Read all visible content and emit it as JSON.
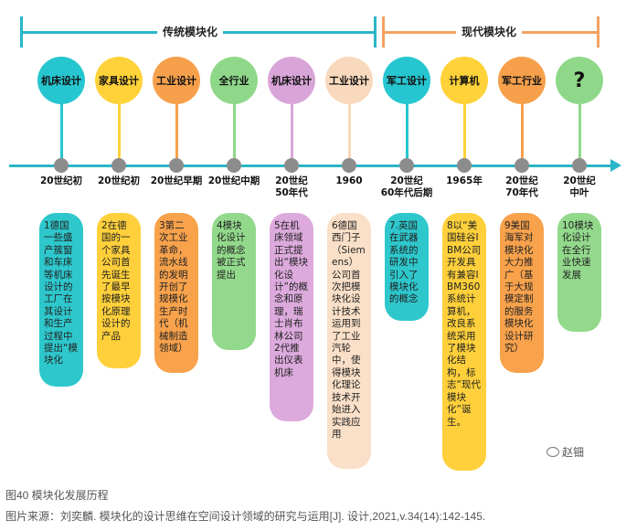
{
  "eras": [
    {
      "label": "传统模块化",
      "color": "#29b6c7"
    },
    {
      "label": "现代模块化",
      "color": "#f4a261"
    }
  ],
  "stages": [
    {
      "category": "机床设计",
      "color": "#26c6d0",
      "period": "20世纪初",
      "desc": "1德国一些盛产簇窗和车床等机床设计的工厂在其设计和生产过程中提出“模块化",
      "card_color": "#2ec7cc"
    },
    {
      "category": "家具设计",
      "color": "#ffd23a",
      "period": "20世纪初",
      "desc": "2在德国的一个家具公司首先诞生了最早按模块化原理设计的产品",
      "card_color": "#ffd03b"
    },
    {
      "category": "工业设计",
      "color": "#f7a04b",
      "period": "20世纪早期",
      "desc": "3第二次工业革命，流水线的发明开创了规模化生产时代（机械制造领域）",
      "card_color": "#f8a24c"
    },
    {
      "category": "全行业",
      "color": "#8fd88a",
      "period": "20世纪中期",
      "desc": "4模块化设计的概念被正式提出",
      "card_color": "#93d98c"
    },
    {
      "category": "机床设计",
      "color": "#d9a5d9",
      "period": "20世纪\n50年代",
      "desc": "5在机床领域正式提出“模块化设计”的概念和原理，瑞士肖布林公司2代推出仪表机床",
      "card_color": "#dcaadc"
    },
    {
      "category": "工业设计",
      "color": "#f9d9bd",
      "period": "1960",
      "desc": "6德国西门子（Siemens）公司首次把模块化设计技术运用到了工业汽轮中，使得模块化理论技术开始进入实践应用",
      "card_color": "#fae0c8"
    },
    {
      "category": "军工设计",
      "color": "#26c6d0",
      "period": "20世纪\n60年代后期",
      "desc": "7.英国在武器系统的研发中引入了模块化的概念",
      "card_color": "#2ec7cc"
    },
    {
      "category": "计算机",
      "color": "#ffd23a",
      "period": "1965年",
      "desc": "8以“美国硅谷IBM公司开发具有兼容IBM360系统计算机，改良系统采用了模块化结构，标志“现代模块化”诞生。",
      "card_color": "#ffd03b"
    },
    {
      "category": "军工行业",
      "color": "#f7a04b",
      "period": "20世纪\n70年代",
      "desc": "9美国海军对模块化大力推广（基于大规模定制的服务模块化设计研究）",
      "card_color": "#f8a24c"
    },
    {
      "category": "?",
      "color": "#8fd88a",
      "period": "20世纪\n中叶",
      "desc": "10模块化设计在全行业快速发展",
      "card_color": "#93d98c"
    }
  ],
  "watermark": "赵钿",
  "caption": {
    "title": "图40 模块化发展历程",
    "source": "图片来源：刘奕麟. 模块化的设计思维在空间设计领域的研究与运用[J]. 设计,2021,v.34(14):142-145."
  }
}
